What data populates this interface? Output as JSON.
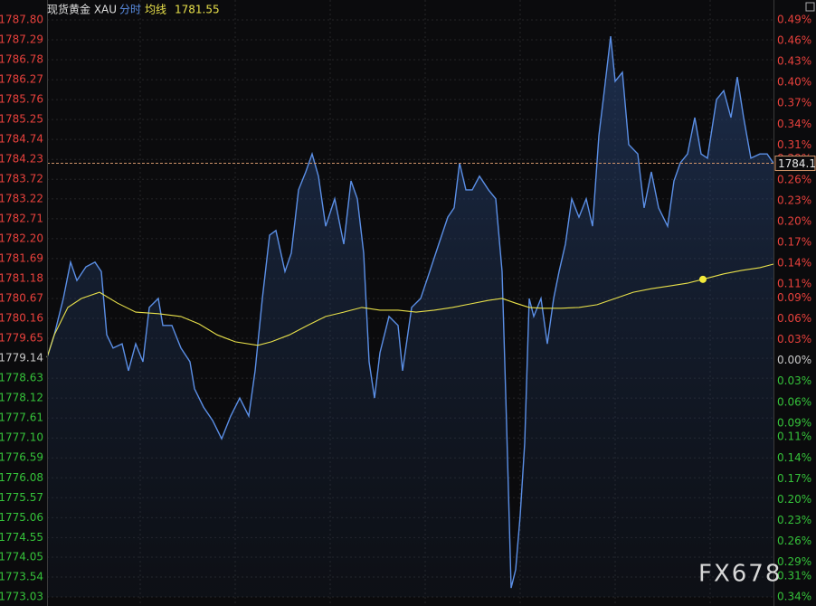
{
  "chart_data": {
    "type": "line",
    "title": "现货黄金 XAU",
    "watermark": "FX678",
    "xlim": [
      0,
      803
    ],
    "xticks": [
      103,
      208,
      313,
      418,
      523,
      628,
      733
    ],
    "ylim": [
      1773.03,
      1787.8
    ],
    "yticks": [
      {
        "value": 1787.8,
        "label": "1787.80"
      },
      {
        "value": 1787.29,
        "label": "1787.29"
      },
      {
        "value": 1786.78,
        "label": "1786.78"
      },
      {
        "value": 1786.27,
        "label": "1786.27"
      },
      {
        "value": 1785.76,
        "label": "1785.76"
      },
      {
        "value": 1785.25,
        "label": "1785.25"
      },
      {
        "value": 1784.74,
        "label": "1784.74"
      },
      {
        "value": 1784.23,
        "label": "1784.23"
      },
      {
        "value": 1783.72,
        "label": "1783.72"
      },
      {
        "value": 1783.22,
        "label": "1783.22"
      },
      {
        "value": 1782.71,
        "label": "1782.71"
      },
      {
        "value": 1782.2,
        "label": "1782.20"
      },
      {
        "value": 1781.69,
        "label": "1781.69"
      },
      {
        "value": 1781.18,
        "label": "1781.18"
      },
      {
        "value": 1780.67,
        "label": "1780.67"
      },
      {
        "value": 1780.16,
        "label": "1780.16"
      },
      {
        "value": 1779.65,
        "label": "1779.65"
      },
      {
        "value": 1779.14,
        "label": "1779.14"
      },
      {
        "value": 1778.63,
        "label": "1778.63"
      },
      {
        "value": 1778.12,
        "label": "1778.12"
      },
      {
        "value": 1777.61,
        "label": "1777.61"
      },
      {
        "value": 1777.1,
        "label": "1777.10"
      },
      {
        "value": 1776.59,
        "label": "1776.59"
      },
      {
        "value": 1776.08,
        "label": "1776.08"
      },
      {
        "value": 1775.57,
        "label": "1775.57"
      },
      {
        "value": 1775.06,
        "label": "1775.06"
      },
      {
        "value": 1774.55,
        "label": "1774.55"
      },
      {
        "value": 1774.05,
        "label": "1774.05"
      },
      {
        "value": 1773.54,
        "label": "1773.54"
      },
      {
        "value": 1773.03,
        "label": "1773.03"
      }
    ],
    "y2lim": [
      -0.34,
      0.49
    ],
    "y2ticks": [
      {
        "value": 0.49,
        "label": "0.49%"
      },
      {
        "value": 0.46,
        "label": "0.46%"
      },
      {
        "value": 0.43,
        "label": "0.43%"
      },
      {
        "value": 0.4,
        "label": "0.40%"
      },
      {
        "value": 0.37,
        "label": "0.37%"
      },
      {
        "value": 0.34,
        "label": "0.34%"
      },
      {
        "value": 0.31,
        "label": "0.31%"
      },
      {
        "value": 0.29,
        "label": "0.29%"
      },
      {
        "value": 0.26,
        "label": "0.26%"
      },
      {
        "value": 0.23,
        "label": "0.23%"
      },
      {
        "value": 0.2,
        "label": "0.20%"
      },
      {
        "value": 0.17,
        "label": "0.17%"
      },
      {
        "value": 0.14,
        "label": "0.14%"
      },
      {
        "value": 0.11,
        "label": "0.11%"
      },
      {
        "value": 0.09,
        "label": "0.09%"
      },
      {
        "value": 0.06,
        "label": "0.06%"
      },
      {
        "value": 0.03,
        "label": "0.03%"
      },
      {
        "value": 0.0,
        "label": "0.00%"
      },
      {
        "value": -0.03,
        "label": "0.03%"
      },
      {
        "value": -0.06,
        "label": "0.06%"
      },
      {
        "value": -0.09,
        "label": "0.09%"
      },
      {
        "value": -0.11,
        "label": "0.11%"
      },
      {
        "value": -0.14,
        "label": "0.14%"
      },
      {
        "value": -0.17,
        "label": "0.17%"
      },
      {
        "value": -0.2,
        "label": "0.20%"
      },
      {
        "value": -0.23,
        "label": "0.23%"
      },
      {
        "value": -0.26,
        "label": "0.26%"
      },
      {
        "value": -0.29,
        "label": "0.29%"
      },
      {
        "value": -0.31,
        "label": "0.31%"
      },
      {
        "value": -0.34,
        "label": "0.34%"
      }
    ],
    "grid": true,
    "series": [
      {
        "name": "分时",
        "color": "#5b8fe6",
        "x": [
          0,
          8,
          18,
          26,
          33,
          43,
          53,
          60,
          66,
          73,
          83,
          90,
          98,
          106,
          113,
          123,
          128,
          138,
          148,
          158,
          163,
          173,
          183,
          193,
          203,
          213,
          223,
          230,
          238,
          246,
          253,
          263,
          270,
          278,
          286,
          293,
          300,
          308,
          318,
          328,
          336,
          343,
          350,
          356,
          362,
          368,
          378,
          388,
          393,
          403,
          413,
          423,
          433,
          443,
          450,
          456,
          463,
          470,
          478,
          488,
          496,
          503,
          508,
          513,
          518,
          523,
          528,
          533,
          538,
          546,
          553,
          560,
          566,
          573,
          580,
          588,
          596,
          603,
          610,
          616,
          623,
          628,
          636,
          643,
          653,
          660,
          668,
          676,
          686,
          693,
          700,
          708,
          716,
          723,
          730,
          740,
          748,
          756,
          763,
          770,
          778,
          788,
          796,
          803
        ],
        "values": [
          1779.16,
          1779.74,
          1780.67,
          1781.6,
          1781.13,
          1781.48,
          1781.6,
          1781.36,
          1779.74,
          1779.4,
          1779.51,
          1778.82,
          1779.51,
          1779.05,
          1780.44,
          1780.67,
          1779.98,
          1779.98,
          1779.4,
          1779.05,
          1778.36,
          1777.89,
          1777.55,
          1777.08,
          1777.66,
          1778.12,
          1777.66,
          1778.82,
          1780.67,
          1782.29,
          1782.41,
          1781.36,
          1781.83,
          1783.45,
          1783.91,
          1784.37,
          1783.8,
          1782.52,
          1783.22,
          1782.06,
          1783.68,
          1783.22,
          1781.83,
          1779.05,
          1778.12,
          1779.28,
          1780.21,
          1779.98,
          1778.82,
          1780.44,
          1780.67,
          1781.36,
          1782.06,
          1782.75,
          1782.99,
          1784.14,
          1783.45,
          1783.45,
          1783.8,
          1783.45,
          1783.22,
          1781.36,
          1777.43,
          1773.26,
          1773.73,
          1775.11,
          1776.97,
          1780.67,
          1780.21,
          1780.67,
          1779.51,
          1780.67,
          1781.36,
          1782.06,
          1783.22,
          1782.75,
          1783.22,
          1782.52,
          1784.84,
          1785.99,
          1787.38,
          1786.23,
          1786.46,
          1784.61,
          1784.37,
          1782.99,
          1783.91,
          1782.99,
          1782.52,
          1783.68,
          1784.14,
          1784.37,
          1785.3,
          1784.37,
          1784.26,
          1785.76,
          1785.99,
          1785.3,
          1786.34,
          1785.3,
          1784.26,
          1784.37,
          1784.37,
          1784.13
        ]
      },
      {
        "name": "均线",
        "color": "#e8e04a",
        "x": [
          0,
          8,
          23,
          38,
          58,
          78,
          98,
          123,
          148,
          168,
          188,
          208,
          233,
          248,
          268,
          288,
          308,
          328,
          348,
          368,
          388,
          408,
          428,
          448,
          468,
          488,
          503,
          518,
          533,
          548,
          568,
          588,
          608,
          628,
          648,
          668,
          688,
          708,
          725,
          748,
          768,
          788,
          803
        ],
        "values": [
          1779.16,
          1779.74,
          1780.44,
          1780.67,
          1780.83,
          1780.55,
          1780.32,
          1780.28,
          1780.21,
          1780.02,
          1779.74,
          1779.56,
          1779.47,
          1779.56,
          1779.74,
          1779.98,
          1780.21,
          1780.32,
          1780.44,
          1780.37,
          1780.37,
          1780.32,
          1780.37,
          1780.44,
          1780.53,
          1780.62,
          1780.67,
          1780.55,
          1780.44,
          1780.42,
          1780.42,
          1780.44,
          1780.51,
          1780.67,
          1780.83,
          1780.92,
          1780.99,
          1781.06,
          1781.16,
          1781.3,
          1781.39,
          1781.46,
          1781.55
        ]
      }
    ]
  }
}
